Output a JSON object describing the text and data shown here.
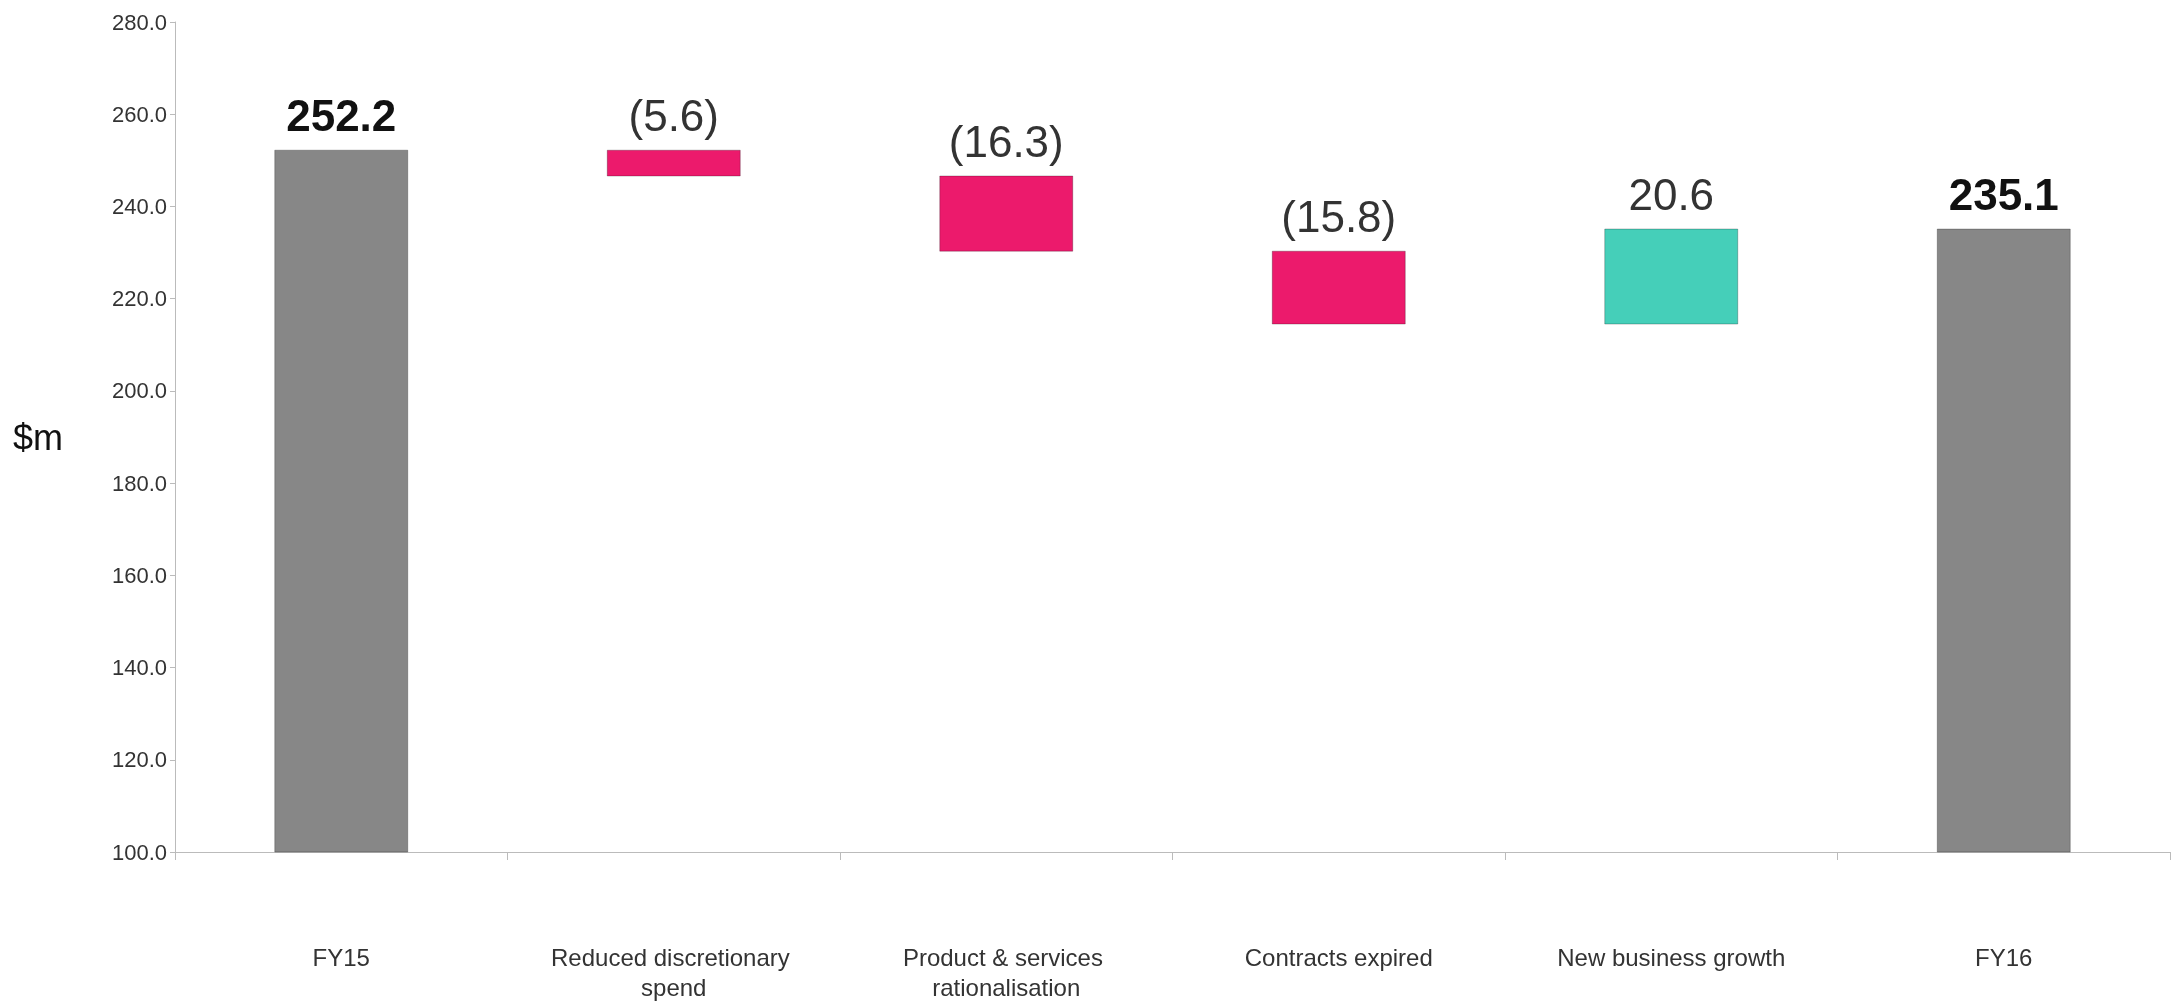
{
  "chart_data": {
    "type": "bar",
    "ylabel": "$m",
    "categories": [
      "FY15",
      "Reduced discretionary spend",
      "Product & services rationalisation",
      "Contracts expired",
      "New business growth",
      "FY16"
    ],
    "values": [
      252.2,
      -5.6,
      -16.3,
      -15.8,
      20.6,
      235.1
    ],
    "base": [
      null,
      252.2,
      246.6,
      230.3,
      214.5,
      null
    ],
    "colors": [
      "#878787",
      "#ec1a6c",
      "#ec1a6c",
      "#ec1a6c",
      "#45cfb9",
      "#878787"
    ],
    "value_labels": [
      "252.2",
      "(5.6)",
      "(16.3)",
      "(15.8)",
      "20.6",
      "235.1"
    ],
    "ylim": [
      100,
      280
    ],
    "yticks": [
      {
        "value": 100,
        "label": "100.0"
      },
      {
        "value": 120,
        "label": "120.0"
      },
      {
        "value": 140,
        "label": "140.0"
      },
      {
        "value": 160,
        "label": "160.0"
      },
      {
        "value": 180,
        "label": "180.0"
      },
      {
        "value": 200,
        "label": "200.0"
      },
      {
        "value": 220,
        "label": "220.0"
      },
      {
        "value": 240,
        "label": "240.0"
      },
      {
        "value": 260,
        "label": "260.0"
      },
      {
        "value": 280,
        "label": "280.0"
      }
    ],
    "grid": false
  }
}
